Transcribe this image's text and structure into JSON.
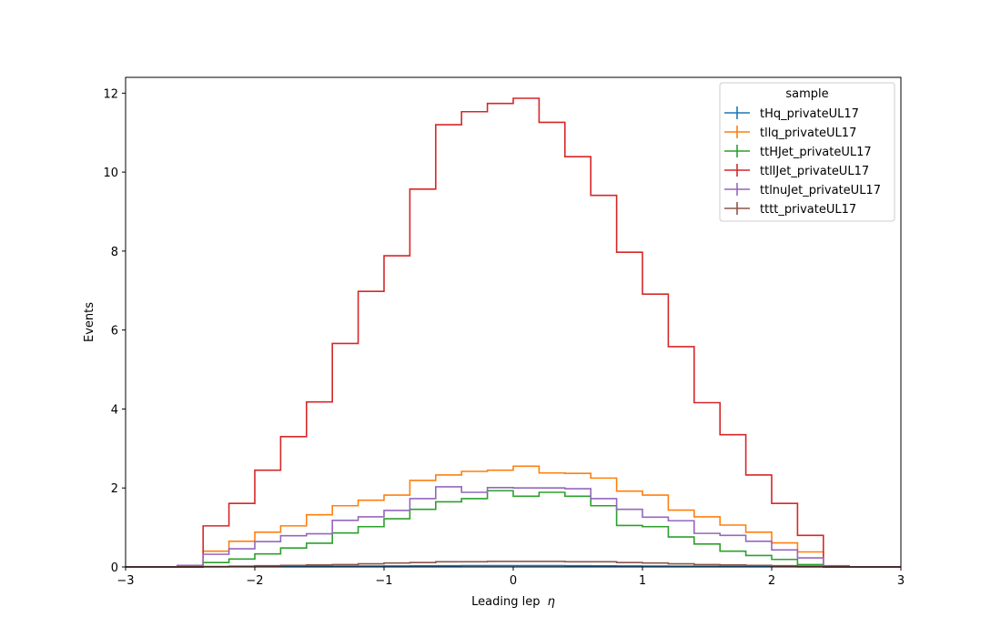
{
  "chart_data": {
    "type": "line",
    "step": "histogram",
    "xlabel": "Leading lep",
    "xlabel_symbol": "η",
    "ylabel": "Events",
    "xlim": [
      -3,
      3
    ],
    "ylim": [
      0,
      12.4
    ],
    "xticks": [
      -3,
      -2,
      -1,
      0,
      1,
      2,
      3
    ],
    "xtick_labels": [
      "−3",
      "−2",
      "−1",
      "0",
      "1",
      "2",
      "3"
    ],
    "yticks": [
      0,
      2,
      4,
      6,
      8,
      10,
      12
    ],
    "ytick_labels": [
      "0",
      "2",
      "4",
      "6",
      "8",
      "10",
      "12"
    ],
    "legend_title": "sample",
    "legend_position": "top-right",
    "grid": false,
    "bin_edges": [
      -3.0,
      -2.8,
      -2.6,
      -2.4,
      -2.2,
      -2.0,
      -1.8,
      -1.6,
      -1.4,
      -1.2,
      -1.0,
      -0.8,
      -0.6,
      -0.4,
      -0.2,
      0.0,
      0.2,
      0.4,
      0.6,
      0.8,
      1.0,
      1.2,
      1.4,
      1.6,
      1.8,
      2.0,
      2.2,
      2.4,
      2.6,
      2.8,
      3.0
    ],
    "series": [
      {
        "name": "tHq_privateUL17",
        "color": "#1f77b4",
        "values": [
          0,
          0,
          0,
          0.003,
          0.006,
          0.009,
          0.012,
          0.015,
          0.018,
          0.022,
          0.025,
          0.028,
          0.03,
          0.032,
          0.033,
          0.033,
          0.032,
          0.03,
          0.028,
          0.025,
          0.022,
          0.018,
          0.015,
          0.012,
          0.009,
          0.006,
          0.003,
          0,
          0,
          0
        ]
      },
      {
        "name": "tllq_privateUL17",
        "color": "#ff7f0e",
        "values": [
          0,
          0,
          0,
          0.4,
          0.65,
          0.88,
          1.04,
          1.32,
          1.55,
          1.69,
          1.82,
          2.19,
          2.33,
          2.42,
          2.45,
          2.55,
          2.38,
          2.37,
          2.25,
          1.92,
          1.82,
          1.44,
          1.27,
          1.06,
          0.88,
          0.61,
          0.38,
          0,
          0,
          0
        ]
      },
      {
        "name": "ttHJet_privateUL17",
        "color": "#2ca02c",
        "values": [
          0,
          0,
          0,
          0.11,
          0.2,
          0.33,
          0.48,
          0.6,
          0.86,
          1.02,
          1.22,
          1.46,
          1.65,
          1.73,
          1.93,
          1.79,
          1.89,
          1.79,
          1.55,
          1.05,
          1.02,
          0.76,
          0.58,
          0.4,
          0.29,
          0.19,
          0.06,
          0,
          0,
          0
        ]
      },
      {
        "name": "ttllJet_privateUL17",
        "color": "#d62728",
        "values": [
          0,
          0,
          0,
          1.04,
          1.61,
          2.45,
          3.3,
          4.18,
          5.66,
          6.98,
          7.88,
          9.57,
          11.2,
          11.53,
          11.74,
          11.87,
          11.26,
          10.39,
          9.41,
          7.97,
          6.91,
          5.58,
          4.16,
          3.35,
          2.33,
          1.61,
          0.8,
          0,
          0,
          0
        ]
      },
      {
        "name": "ttlnuJet_privateUL17",
        "color": "#9467bd",
        "values": [
          0,
          0,
          0.04,
          0.32,
          0.46,
          0.64,
          0.79,
          0.84,
          1.18,
          1.27,
          1.43,
          1.73,
          2.03,
          1.89,
          2.01,
          2.0,
          2.0,
          1.98,
          1.73,
          1.46,
          1.26,
          1.17,
          0.85,
          0.8,
          0.65,
          0.43,
          0.23,
          0.03,
          0,
          0
        ]
      },
      {
        "name": "tttt_privateUL17",
        "color": "#8c564b",
        "values": [
          0,
          0,
          0,
          0.01,
          0.02,
          0.03,
          0.04,
          0.05,
          0.06,
          0.08,
          0.1,
          0.11,
          0.13,
          0.13,
          0.14,
          0.14,
          0.14,
          0.13,
          0.13,
          0.11,
          0.1,
          0.08,
          0.06,
          0.05,
          0.04,
          0.03,
          0.02,
          0.01,
          0,
          0
        ]
      }
    ]
  }
}
